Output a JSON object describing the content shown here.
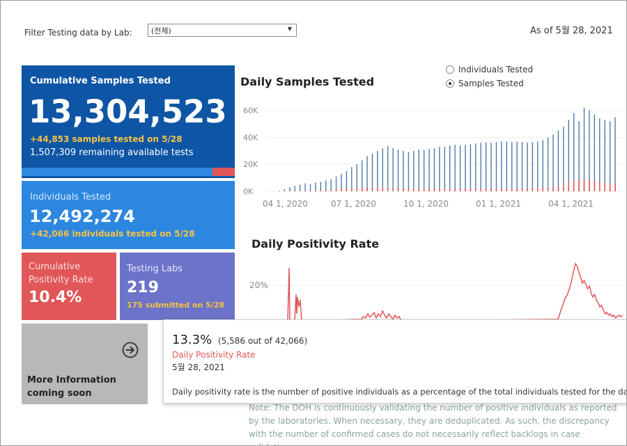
{
  "filter": {
    "label": "Filter Testing data by Lab:",
    "value": "(전체)"
  },
  "as_of": "As of 5월 28, 2021",
  "tiles": {
    "cumulative": {
      "label": "Cumulative Samples Tested",
      "value": "13,304,523",
      "sub1": "+44,853 samples tested on 5/28",
      "sub2": "1,507,309 remaining available tests",
      "used_fraction": 0.898
    },
    "individuals": {
      "label": "Individuals Tested",
      "value": "12,492,274",
      "sub": "+42,066  individuals  tested on 5/28"
    },
    "positivity": {
      "label": "Cumulative Positivity Rate",
      "value": "10.4%"
    },
    "labs": {
      "label": "Testing Labs",
      "value": "219",
      "sub": "175 submitted on 5/28"
    },
    "more": {
      "label": "More Information coming soon",
      "icon": "arrow-circle-right-icon"
    }
  },
  "daily_samples": {
    "title": "Daily Samples Tested",
    "radio": [
      {
        "label": "Individuals Tested",
        "selected": false
      },
      {
        "label": "Samples Tested",
        "selected": true
      }
    ]
  },
  "daily_positivity": {
    "title": "Daily Positivity Rate"
  },
  "tooltip": {
    "pct": "13.3%",
    "detail": "(5,586 out of  42,066)",
    "name": "Daily Positivity Rate",
    "date": "5월 28, 2021",
    "desc_bold": "Daily positivity rate",
    "desc_rest": " is the number of positive individuals as a percentage of the total individuals tested for the day"
  },
  "note": "Note: The DOH is continuously validating the number of positive individuals as reported by the laboratories. When necessary, they are deduplicated. As such, the discrepancy with the number of confirmed cases do not necessarily reflect backlogs in case validation.",
  "colors": {
    "blue_dark": "#0e56a5",
    "blue": "#2c87e0",
    "red": "#e15759",
    "purple": "#6c73c8",
    "gray": "#b8b8b8",
    "gold": "#f6c343",
    "bar_blue": "#4e79a7"
  },
  "chart_data": [
    {
      "type": "bar",
      "title": "Daily Samples Tested",
      "y_ticks": [
        "0K",
        "20K",
        "40K",
        "60K"
      ],
      "x_ticks": [
        "04 1, 2020",
        "07 1, 2020",
        "10 1, 2020",
        "01 1, 2021",
        "04 1, 2021"
      ],
      "ylim": [
        0,
        65000
      ],
      "series": [
        {
          "name": "Samples Tested",
          "values": [
            500,
            1500,
            3000,
            4000,
            5000,
            6000,
            5500,
            6500,
            7000,
            8000,
            9000,
            11000,
            13000,
            15000,
            18000,
            20000,
            23000,
            26000,
            28000,
            30000,
            32000,
            33500,
            32000,
            31000,
            30000,
            29000,
            30000,
            31000,
            30500,
            31500,
            32000,
            33000,
            33000,
            34000,
            34500,
            34000,
            34500,
            35000,
            35500,
            36000,
            36500,
            36000,
            36500,
            37000,
            37000,
            36500,
            37000,
            36500,
            36000,
            36500,
            37000,
            38000,
            40000,
            42000,
            45000,
            48000,
            53000,
            58000,
            52000,
            62000,
            60000,
            57000,
            54000,
            53000,
            52000,
            55000
          ]
        },
        {
          "name": "Positive",
          "values": [
            50,
            100,
            200,
            300,
            400,
            400,
            400,
            500,
            600,
            800,
            1000,
            1500,
            2000,
            2500,
            2600,
            2800,
            3000,
            3000,
            2900,
            2800,
            2700,
            2800,
            2600,
            2500,
            2500,
            2400,
            2400,
            2500,
            2300,
            2400,
            2200,
            2300,
            2200,
            2400,
            2300,
            2400,
            2300,
            2200,
            2300,
            2200,
            2400,
            2300,
            2200,
            2300,
            2400,
            2300,
            2200,
            2400,
            2300,
            2500,
            2600,
            2800,
            3000,
            3500,
            4000,
            5000,
            6500,
            8000,
            8500,
            9000,
            8500,
            8000,
            7000,
            6500,
            6000,
            5500
          ]
        }
      ]
    },
    {
      "type": "line",
      "title": "Daily Positivity Rate",
      "y_ticks": [
        "20%"
      ],
      "ylim": [
        0,
        32
      ]
    }
  ]
}
